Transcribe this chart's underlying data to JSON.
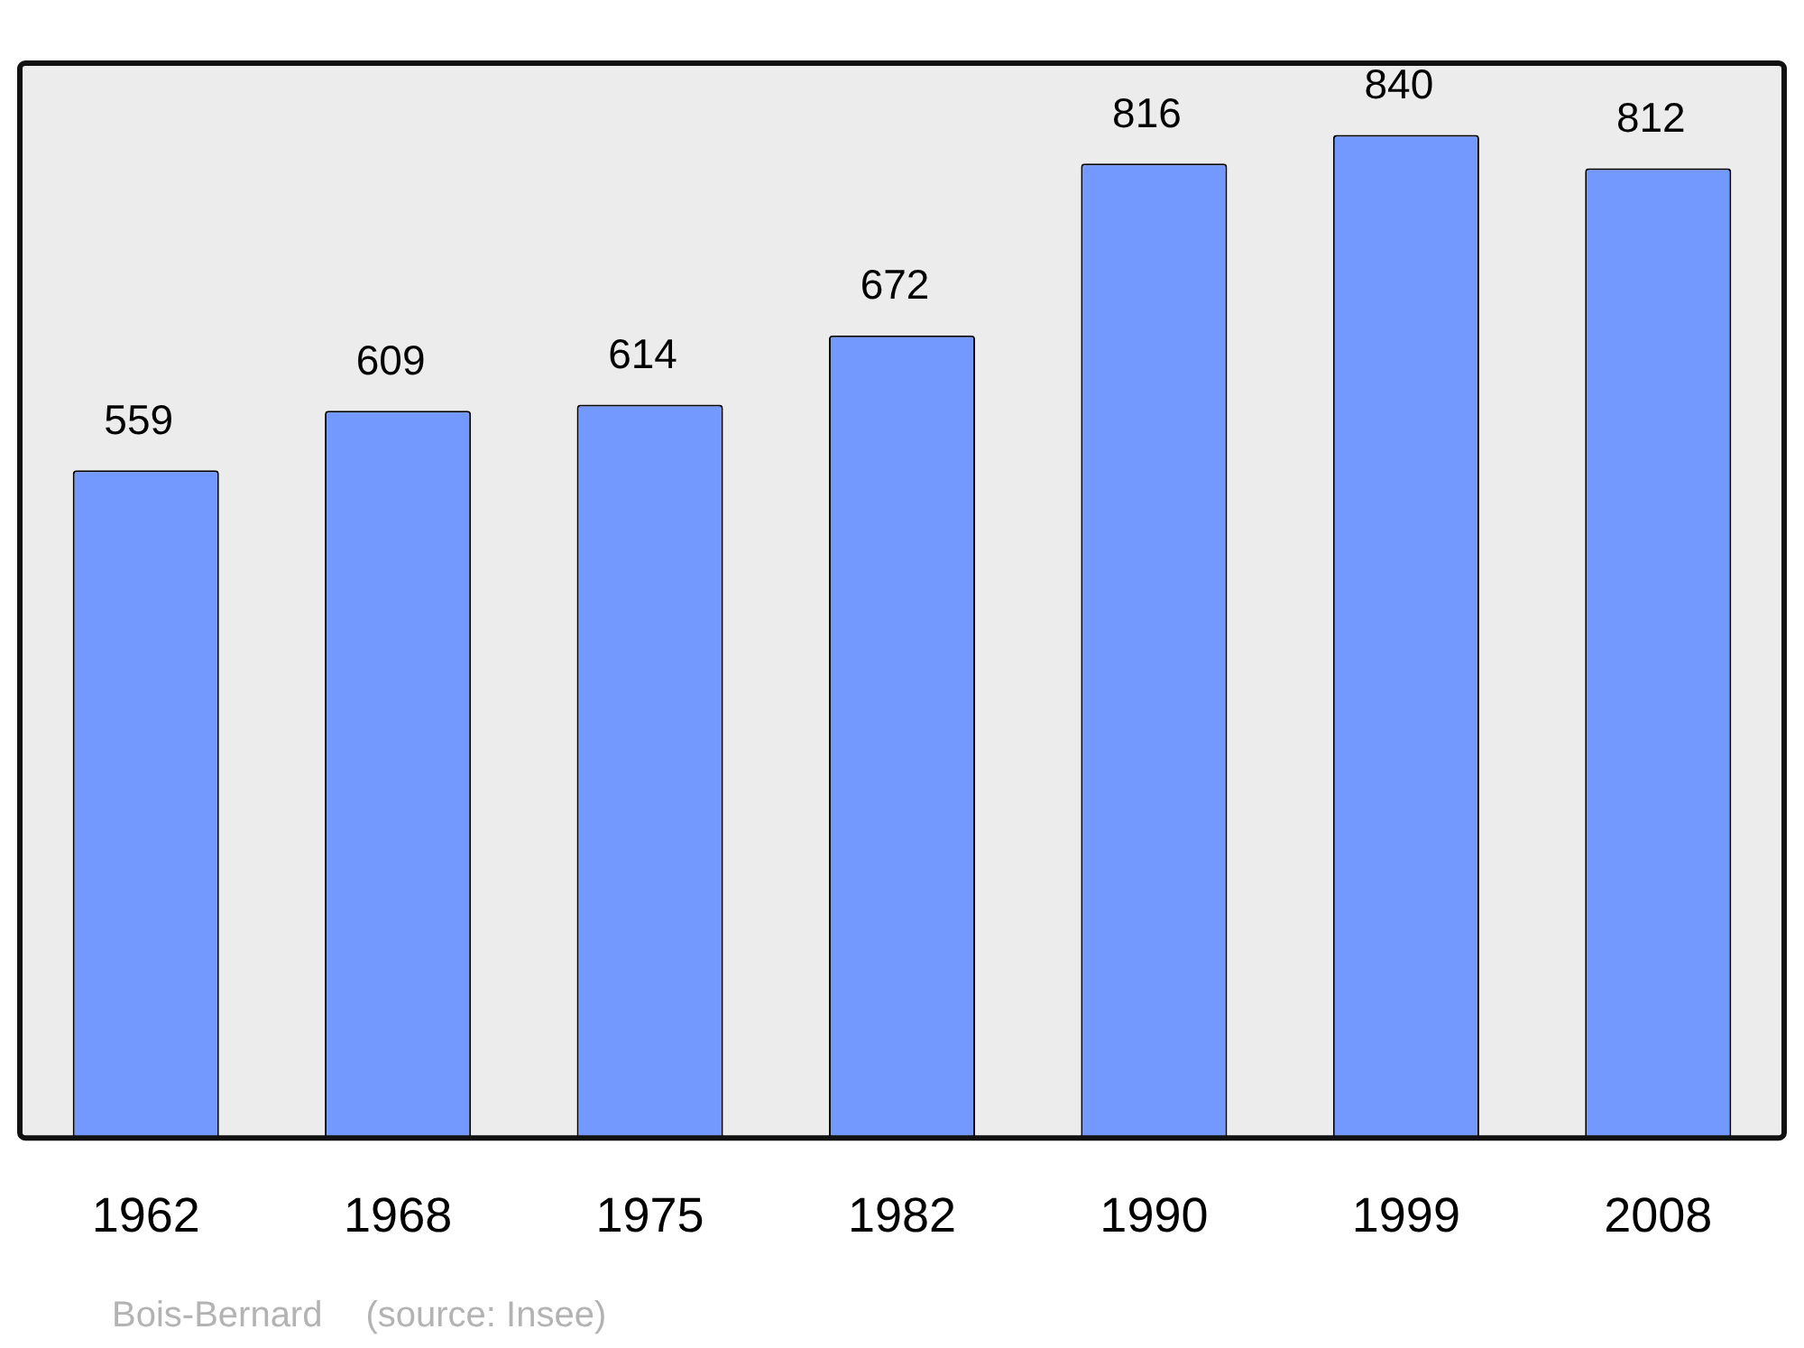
{
  "chart_data": {
    "type": "bar",
    "categories": [
      "1962",
      "1968",
      "1975",
      "1982",
      "1990",
      "1999",
      "2008"
    ],
    "values": [
      559,
      609,
      614,
      672,
      816,
      840,
      812
    ],
    "color": "#7399ff",
    "data_labels": true,
    "annotations": [
      "Bois-Bernard",
      "(source: Insee)"
    ]
  }
}
